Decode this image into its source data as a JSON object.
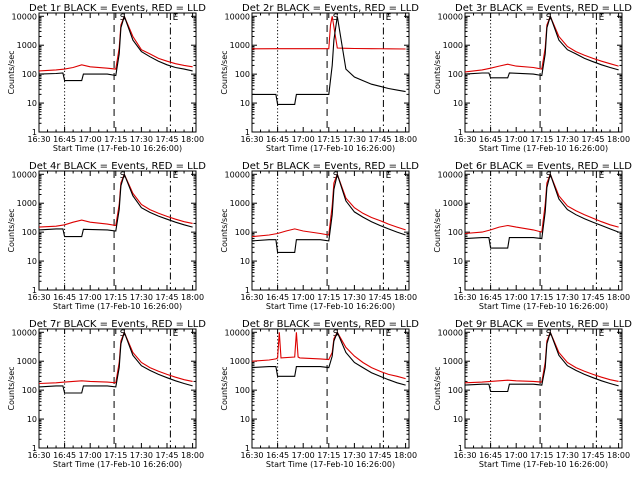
{
  "figure": {
    "colors": {
      "events": "#000000",
      "lld": "#dd0000",
      "axes": "#000000"
    },
    "x_tick_labels": [
      "16:30",
      "16:45",
      "17:00",
      "17:15",
      "17:30",
      "17:45",
      "18:00"
    ],
    "x_ticks_min": [
      0,
      15,
      30,
      45,
      60,
      75,
      90
    ],
    "y_tick_labels": [
      "1",
      "10",
      "100",
      "1000",
      "10000"
    ],
    "y_ticks": [
      1,
      10,
      100,
      1000,
      10000
    ]
  },
  "chart_data": [
    {
      "type": "line",
      "title": "Det 1r BLACK = Events, RED = LLD",
      "xlabel": "Start Time (17-Feb-10 16:26:00)",
      "ylabel": "Counts/sec",
      "ylim": [
        1,
        10000
      ],
      "y_scale": "log",
      "markers": [
        "S",
        "E"
      ],
      "series": [
        {
          "x": [
            0,
            10,
            15,
            20,
            25,
            30,
            40,
            45,
            47,
            48,
            50,
            55,
            60,
            65,
            70,
            75,
            80,
            85,
            90
          ],
          "y": [
            130,
            140,
            150,
            170,
            210,
            180,
            160,
            150,
            800,
            5000,
            10000,
            2000,
            700,
            500,
            350,
            280,
            230,
            200,
            180
          ]
        },
        {
          "x": [
            0,
            10,
            14,
            15,
            25,
            26,
            40,
            45,
            47,
            48,
            50,
            55,
            60,
            65,
            70,
            75,
            80,
            85,
            90
          ],
          "y": [
            100,
            105,
            110,
            60,
            60,
            100,
            100,
            90,
            500,
            4000,
            10000,
            1500,
            600,
            400,
            280,
            210,
            170,
            150,
            130
          ]
        }
      ]
    },
    {
      "type": "line",
      "title": "Det 2r BLACK = Events, RED = LLD",
      "xlabel": "Start Time (17-Feb-10 16:26:00)",
      "ylabel": "Counts/sec",
      "ylim": [
        1,
        10000
      ],
      "y_scale": "log",
      "markers": [
        "S",
        "E"
      ],
      "series": [
        {
          "x": [
            0,
            15,
            30,
            45,
            46,
            47,
            50,
            55,
            60,
            70,
            80,
            90
          ],
          "y": [
            750,
            760,
            760,
            760,
            5000,
            10000,
            800,
            780,
            770,
            760,
            750,
            740
          ]
        },
        {
          "x": [
            0,
            10,
            14,
            15,
            25,
            26,
            40,
            45,
            47,
            48,
            50,
            55,
            60,
            65,
            70,
            75,
            80,
            85,
            90
          ],
          "y": [
            20,
            20,
            20,
            9,
            9,
            20,
            20,
            20,
            200,
            1500,
            10000,
            150,
            80,
            60,
            45,
            38,
            32,
            28,
            25
          ]
        }
      ]
    },
    {
      "type": "line",
      "title": "Det 3r BLACK = Events, RED = LLD",
      "xlabel": "Start Time (17-Feb-10 16:26:00)",
      "ylabel": "Counts/sec",
      "ylim": [
        1,
        10000
      ],
      "y_scale": "log",
      "markers": [
        "S",
        "E"
      ],
      "series": [
        {
          "x": [
            0,
            10,
            15,
            20,
            25,
            30,
            40,
            45,
            47,
            48,
            50,
            55,
            60,
            65,
            70,
            75,
            80,
            85,
            90
          ],
          "y": [
            120,
            140,
            160,
            190,
            220,
            190,
            170,
            150,
            800,
            5000,
            10000,
            2000,
            900,
            600,
            450,
            350,
            280,
            230,
            190
          ]
        },
        {
          "x": [
            0,
            10,
            14,
            15,
            25,
            26,
            40,
            45,
            47,
            48,
            50,
            55,
            60,
            65,
            70,
            75,
            80,
            85,
            90
          ],
          "y": [
            100,
            110,
            110,
            75,
            75,
            110,
            100,
            90,
            500,
            4000,
            10000,
            1500,
            700,
            500,
            350,
            270,
            210,
            170,
            140
          ]
        }
      ]
    },
    {
      "type": "line",
      "title": "Det 4r BLACK = Events, RED = LLD",
      "xlabel": "Start Time (17-Feb-10 16:26:00)",
      "ylabel": "Counts/sec",
      "ylim": [
        1,
        10000
      ],
      "y_scale": "log",
      "markers": [
        "S",
        "E"
      ],
      "series": [
        {
          "x": [
            0,
            10,
            15,
            20,
            25,
            30,
            40,
            45,
            47,
            48,
            50,
            55,
            60,
            65,
            70,
            75,
            80,
            85,
            90
          ],
          "y": [
            150,
            160,
            180,
            220,
            260,
            220,
            190,
            170,
            900,
            5000,
            10000,
            2200,
            900,
            600,
            450,
            350,
            280,
            230,
            200
          ]
        },
        {
          "x": [
            0,
            10,
            14,
            15,
            25,
            26,
            40,
            45,
            47,
            48,
            50,
            55,
            60,
            65,
            70,
            75,
            80,
            85,
            90
          ],
          "y": [
            120,
            130,
            130,
            70,
            70,
            125,
            120,
            110,
            600,
            4000,
            10000,
            1800,
            700,
            480,
            360,
            280,
            220,
            180,
            150
          ]
        }
      ]
    },
    {
      "type": "line",
      "title": "Det 5r BLACK = Events, RED = LLD",
      "xlabel": "Start Time (17-Feb-10 16:26:00)",
      "ylabel": "Counts/sec",
      "ylim": [
        1,
        10000
      ],
      "y_scale": "log",
      "markers": [
        "S",
        "E"
      ],
      "series": [
        {
          "x": [
            0,
            10,
            15,
            20,
            25,
            30,
            40,
            45,
            47,
            48,
            50,
            55,
            60,
            65,
            70,
            75,
            80,
            85,
            90
          ],
          "y": [
            70,
            80,
            90,
            110,
            130,
            110,
            90,
            80,
            800,
            5000,
            10000,
            1500,
            700,
            450,
            320,
            250,
            190,
            150,
            120
          ]
        },
        {
          "x": [
            0,
            10,
            14,
            15,
            25,
            26,
            40,
            45,
            47,
            48,
            50,
            55,
            60,
            65,
            70,
            75,
            80,
            85,
            90
          ],
          "y": [
            50,
            55,
            55,
            20,
            20,
            55,
            55,
            50,
            400,
            3000,
            10000,
            1200,
            500,
            330,
            230,
            170,
            130,
            100,
            80
          ]
        }
      ]
    },
    {
      "type": "line",
      "title": "Det 6r BLACK = Events, RED = LLD",
      "xlabel": "Start Time (17-Feb-10 16:26:00)",
      "ylabel": "Counts/sec",
      "ylim": [
        1,
        10000
      ],
      "y_scale": "log",
      "markers": [
        "S",
        "E"
      ],
      "series": [
        {
          "x": [
            0,
            10,
            15,
            20,
            25,
            30,
            40,
            45,
            47,
            48,
            50,
            55,
            60,
            65,
            70,
            75,
            80,
            85,
            90
          ],
          "y": [
            90,
            100,
            120,
            150,
            170,
            150,
            120,
            100,
            900,
            5000,
            10000,
            1800,
            800,
            550,
            400,
            300,
            230,
            180,
            150
          ]
        },
        {
          "x": [
            0,
            10,
            14,
            15,
            25,
            26,
            40,
            45,
            47,
            48,
            50,
            55,
            60,
            65,
            70,
            75,
            80,
            85,
            90
          ],
          "y": [
            60,
            65,
            65,
            28,
            28,
            65,
            65,
            60,
            500,
            3500,
            10000,
            1400,
            600,
            400,
            290,
            220,
            170,
            130,
            100
          ]
        }
      ]
    },
    {
      "type": "line",
      "title": "Det 7r BLACK = Events, RED = LLD",
      "xlabel": "Start Time (17-Feb-10 16:26:00)",
      "ylabel": "Counts/sec",
      "ylim": [
        1,
        10000
      ],
      "y_scale": "log",
      "markers": [
        "S",
        "E"
      ],
      "series": [
        {
          "x": [
            0,
            10,
            15,
            20,
            25,
            30,
            40,
            45,
            47,
            48,
            50,
            55,
            60,
            65,
            70,
            75,
            80,
            85,
            90
          ],
          "y": [
            170,
            180,
            190,
            200,
            210,
            200,
            190,
            180,
            900,
            5000,
            10000,
            2000,
            900,
            600,
            450,
            350,
            280,
            230,
            200
          ]
        },
        {
          "x": [
            0,
            10,
            14,
            15,
            25,
            26,
            40,
            45,
            47,
            48,
            50,
            55,
            60,
            65,
            70,
            75,
            80,
            85,
            90
          ],
          "y": [
            130,
            140,
            140,
            80,
            80,
            140,
            140,
            130,
            600,
            4000,
            10000,
            1600,
            700,
            480,
            350,
            270,
            210,
            170,
            140
          ]
        }
      ]
    },
    {
      "type": "line",
      "title": "Det 8r BLACK = Events, RED = LLD",
      "xlabel": "Start Time (17-Feb-10 16:26:00)",
      "ylabel": "Counts/sec",
      "ylim": [
        1,
        10000
      ],
      "y_scale": "log",
      "markers": [
        "S",
        "E"
      ],
      "series": [
        {
          "x": [
            0,
            10,
            14,
            15,
            16,
            17,
            25,
            26,
            27,
            28,
            40,
            45,
            47,
            48,
            50,
            55,
            60,
            65,
            70,
            75,
            80,
            85,
            90
          ],
          "y": [
            1000,
            1100,
            1200,
            1300,
            10000,
            1300,
            1400,
            10000,
            1400,
            1300,
            1200,
            1150,
            2000,
            6000,
            10000,
            3000,
            1500,
            900,
            600,
            450,
            350,
            300,
            250
          ]
        },
        {
          "x": [
            0,
            10,
            14,
            15,
            25,
            26,
            40,
            45,
            47,
            48,
            50,
            55,
            60,
            65,
            70,
            75,
            80,
            85,
            90
          ],
          "y": [
            600,
            650,
            650,
            300,
            300,
            650,
            650,
            600,
            1500,
            5000,
            10000,
            2000,
            900,
            600,
            400,
            300,
            230,
            180,
            150
          ]
        }
      ]
    },
    {
      "type": "line",
      "title": "Det 9r BLACK = Events, RED = LLD",
      "xlabel": "Start Time (17-Feb-10 16:26:00)",
      "ylabel": "Counts/sec",
      "ylim": [
        1,
        10000
      ],
      "y_scale": "log",
      "markers": [
        "S",
        "E"
      ],
      "series": [
        {
          "x": [
            0,
            10,
            15,
            20,
            25,
            30,
            40,
            45,
            47,
            48,
            50,
            55,
            60,
            65,
            70,
            75,
            80,
            85,
            90
          ],
          "y": [
            180,
            190,
            200,
            210,
            220,
            210,
            200,
            190,
            900,
            5000,
            10000,
            2000,
            900,
            600,
            450,
            350,
            280,
            230,
            200
          ]
        },
        {
          "x": [
            0,
            10,
            14,
            15,
            25,
            26,
            40,
            45,
            47,
            48,
            50,
            55,
            60,
            65,
            70,
            75,
            80,
            85,
            90
          ],
          "y": [
            150,
            160,
            160,
            90,
            90,
            160,
            160,
            150,
            600,
            4000,
            10000,
            1600,
            700,
            480,
            350,
            270,
            210,
            170,
            140
          ]
        }
      ]
    }
  ]
}
